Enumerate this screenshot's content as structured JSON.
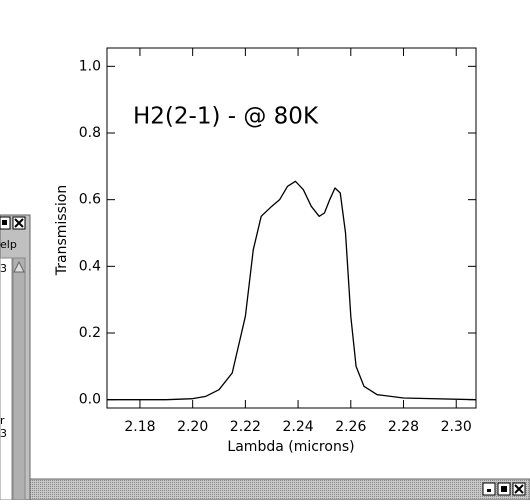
{
  "chart_data": {
    "type": "line",
    "annotation": "H2(2-1) - @ 80K",
    "x_label": "Lambda (microns)",
    "y_label": "Transmission",
    "color": "#000000",
    "x": [
      2.1675,
      2.19,
      2.2,
      2.205,
      2.21,
      2.215,
      2.22,
      2.223,
      2.226,
      2.23,
      2.233,
      2.236,
      2.239,
      2.242,
      2.245,
      2.248,
      2.25,
      2.252,
      2.254,
      2.256,
      2.258,
      2.26,
      2.262,
      2.265,
      2.27,
      2.28,
      2.3075
    ],
    "values": [
      0.0,
      0.0,
      0.003,
      0.01,
      0.03,
      0.08,
      0.25,
      0.45,
      0.55,
      0.58,
      0.6,
      0.64,
      0.655,
      0.63,
      0.58,
      0.55,
      0.56,
      0.6,
      0.635,
      0.62,
      0.5,
      0.25,
      0.1,
      0.04,
      0.015,
      0.005,
      0.0
    ],
    "xlim": [
      2.1675,
      2.3075
    ],
    "ylim": [
      -0.025,
      1.055
    ],
    "xticks": [
      2.18,
      {
        "value": 2.2,
        "label": "2.20"
      },
      2.22,
      2.24,
      2.26,
      2.28,
      {
        "value": 2.3,
        "label": "2.30"
      }
    ],
    "yticks": [
      {
        "value": 0,
        "label": "0.0"
      },
      0.2,
      0.4,
      0.6,
      0.8,
      {
        "value": 1,
        "label": "1.0"
      }
    ]
  },
  "ui": {
    "left_window": {
      "menu": "elp",
      "lines": [
        "3",
        "r",
        "3"
      ]
    }
  }
}
